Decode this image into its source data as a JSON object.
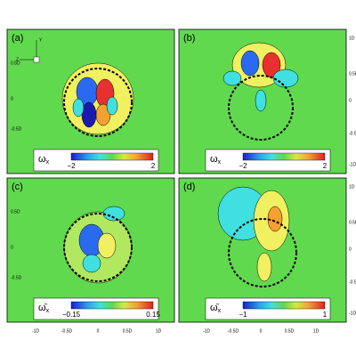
{
  "panels": [
    {
      "label": "(a)",
      "symbol": "ω",
      "subscript": "x",
      "colorbar_ticks": [
        "−2",
        "2"
      ]
    },
    {
      "label": "(b)",
      "symbol": "ω",
      "subscript": "x",
      "colorbar_ticks": [
        "−2",
        "2"
      ]
    },
    {
      "label": "(c)",
      "symbol": "ω̄",
      "subscript": "x",
      "colorbar_ticks": [
        "−0.15",
        "0.15"
      ]
    },
    {
      "label": "(d)",
      "symbol": "ω̄",
      "subscript": "x",
      "colorbar_ticks": [
        "−1",
        "1"
      ]
    }
  ],
  "axes": {
    "left_ticks": [
      "0.5D",
      "0",
      "-0.5D"
    ],
    "right_ticks": [
      "1D",
      "0.5D",
      "0",
      "-0.5D",
      "-1D"
    ],
    "bottom_ticks": [
      "-1D",
      "-0.5D",
      "0",
      "0.5D",
      "1D"
    ]
  },
  "axis_triad": {
    "y": "Y",
    "z": "Z"
  }
}
